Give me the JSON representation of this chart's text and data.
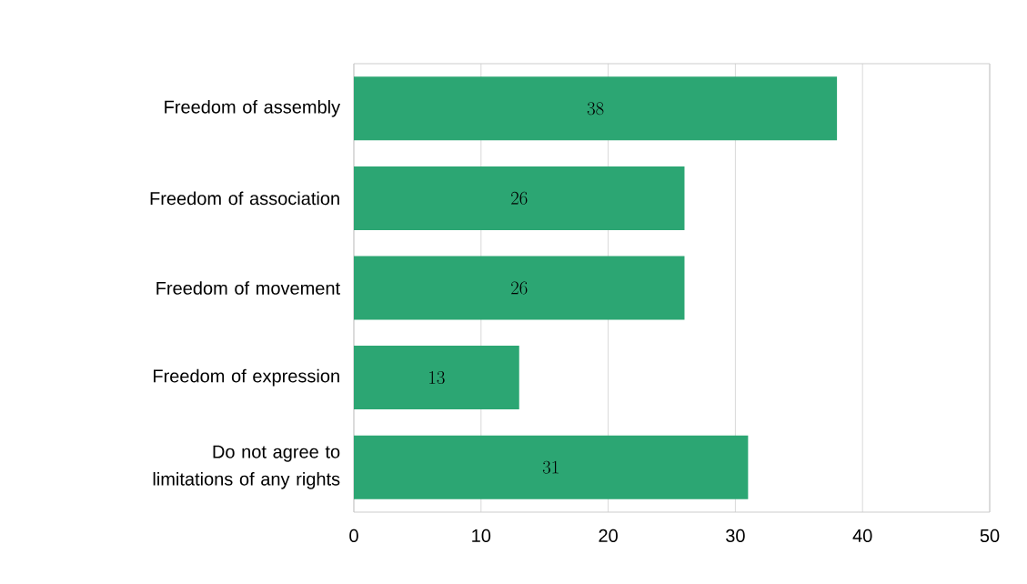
{
  "chart_data": {
    "type": "bar",
    "orientation": "horizontal",
    "categories": [
      "Freedom of assembly",
      "Freedom of association",
      "Freedom of movement",
      "Freedom of expression",
      "Do not agree to limitations of any rights"
    ],
    "values": [
      38,
      26,
      26,
      13,
      31
    ],
    "color": "#2ca673",
    "xlim": [
      0,
      50
    ],
    "xticks": [
      0,
      10,
      20,
      30,
      40,
      50
    ],
    "grid": "x",
    "data_labels": true
  }
}
